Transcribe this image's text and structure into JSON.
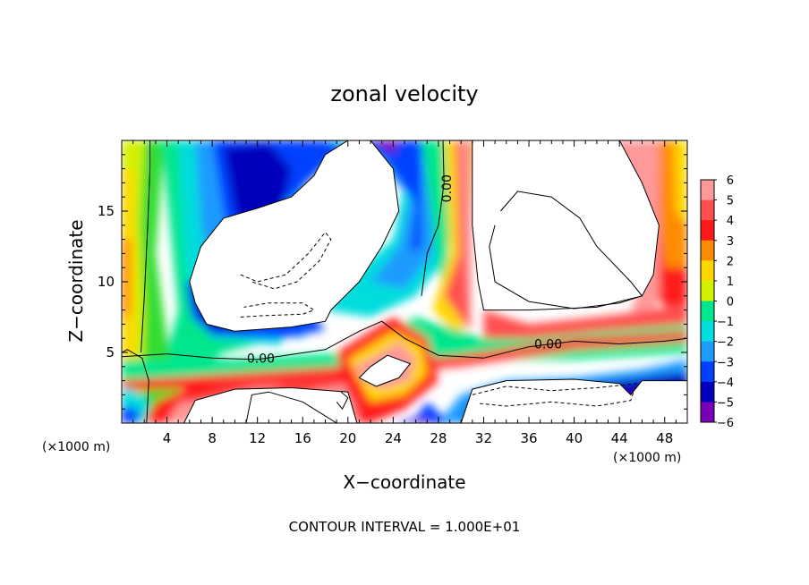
{
  "chart_data": {
    "type": "heatmap",
    "title": "zonal velocity",
    "xlabel": "X−coordinate",
    "ylabel": "Z−coordinate",
    "x_unit_left": "(×1000 m)",
    "x_unit_right": "(×1000 m)",
    "xlim": [
      0,
      50
    ],
    "ylim": [
      0,
      20
    ],
    "x_ticks": [
      4,
      8,
      12,
      16,
      20,
      24,
      28,
      32,
      36,
      40,
      44,
      48
    ],
    "y_ticks": [
      5,
      10,
      15
    ],
    "colorbar": {
      "levels": [
        6,
        5,
        4,
        3,
        2,
        1,
        0,
        -1,
        -2,
        -3,
        -4,
        -5,
        -6
      ],
      "labels": [
        "6",
        "5",
        "4",
        "3",
        "2",
        "1",
        "0",
        "−1",
        "−2",
        "−3",
        "−4",
        "−5",
        "−6"
      ]
    },
    "contour_labels": [
      {
        "text": "0.00",
        "x": 12.3,
        "z": 4.6
      },
      {
        "text": "0.00",
        "x": 28.7,
        "z": 16.6
      },
      {
        "text": "0.00",
        "x": 37.7,
        "z": 5.6
      }
    ],
    "footer": "CONTOUR INTERVAL =  1.000E+01",
    "colors": {
      "6": "#ff9999",
      "5": "#ff5050",
      "4": "#ff1a1a",
      "3": "#ff8c00",
      "2": "#ffd700",
      "1": "#d4f000",
      "0": "#33dd33",
      "-1": "#00e68c",
      "-2": "#00dddd",
      "-3": "#1e9bff",
      "-4": "#0040ff",
      "-5": "#0000bb",
      "-6": "#7a00b8"
    }
  }
}
